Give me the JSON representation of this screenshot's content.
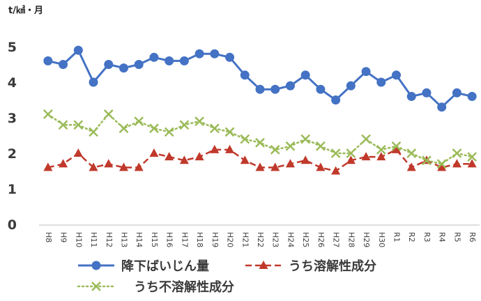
{
  "chart_data": {
    "type": "line",
    "title": "",
    "unit_label": "t/㎢・月",
    "xlabel": "",
    "ylabel": "t/㎢・月",
    "ylim": [
      0,
      5
    ],
    "yticks": [
      0,
      1,
      2,
      3,
      4,
      5
    ],
    "grid": false,
    "legend_position": "bottom",
    "categories": [
      "H8",
      "H9",
      "H10",
      "H11",
      "H12",
      "H13",
      "H14",
      "H15",
      "H16",
      "H17",
      "H18",
      "H19",
      "H20",
      "H21",
      "H22",
      "H23",
      "H24",
      "H25",
      "H26",
      "H27",
      "H28",
      "H29",
      "H30",
      "R1",
      "R2",
      "R3",
      "R4",
      "R5",
      "R6"
    ],
    "series": [
      {
        "name": "降下ばいじん量",
        "color": "#4472C4",
        "style": "solid",
        "marker": "circle",
        "values": [
          4.6,
          4.5,
          4.9,
          4.0,
          4.5,
          4.4,
          4.5,
          4.7,
          4.6,
          4.6,
          4.8,
          4.8,
          4.7,
          4.2,
          3.8,
          3.8,
          3.9,
          4.2,
          3.8,
          3.5,
          3.9,
          4.3,
          4.0,
          4.2,
          3.6,
          3.7,
          3.3,
          3.7,
          3.6
        ]
      },
      {
        "name": "うち溶解性成分",
        "color": "#C0392B",
        "style": "dashed",
        "marker": "triangle",
        "values": [
          1.6,
          1.7,
          2.0,
          1.6,
          1.7,
          1.6,
          1.6,
          2.0,
          1.9,
          1.8,
          1.9,
          2.1,
          2.1,
          1.8,
          1.6,
          1.6,
          1.7,
          1.8,
          1.6,
          1.5,
          1.8,
          1.9,
          1.9,
          2.1,
          1.6,
          1.8,
          1.6,
          1.7,
          1.7
        ]
      },
      {
        "name": "うち不溶解性成分",
        "color": "#9BBB59",
        "style": "dotted",
        "marker": "x",
        "values": [
          3.1,
          2.8,
          2.8,
          2.6,
          3.1,
          2.7,
          2.9,
          2.7,
          2.6,
          2.8,
          2.9,
          2.7,
          2.6,
          2.4,
          2.3,
          2.1,
          2.2,
          2.4,
          2.2,
          2.0,
          2.0,
          2.4,
          2.1,
          2.2,
          2.0,
          1.8,
          1.7,
          2.0,
          1.9
        ]
      }
    ]
  }
}
